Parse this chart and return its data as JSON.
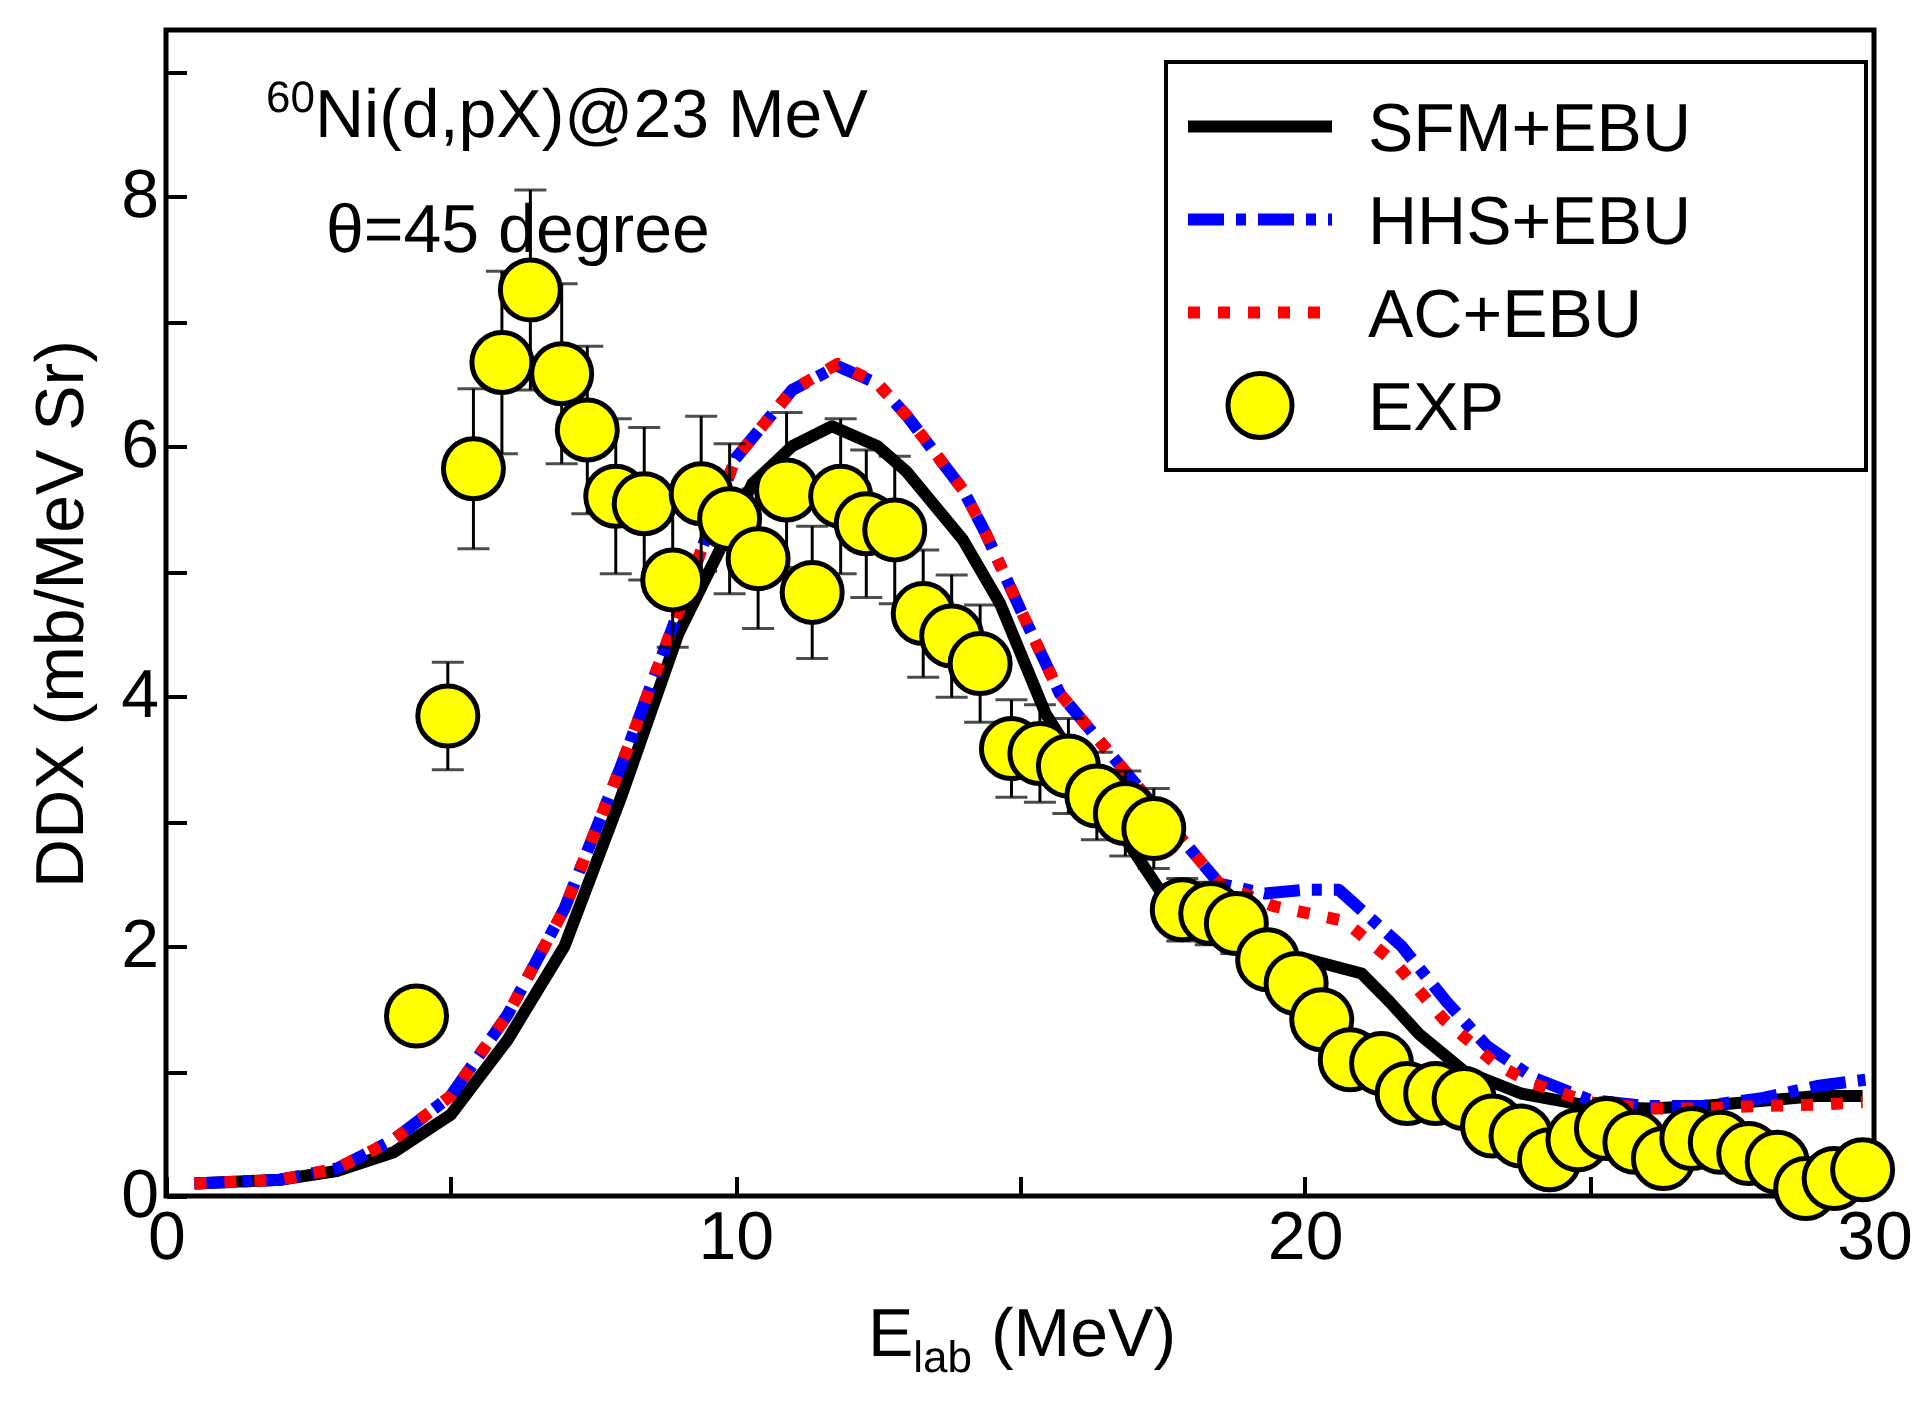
{
  "chart_data": {
    "type": "line",
    "xlabel": "E$_{lab}$ (MeV)",
    "ylabel": "DDX (mb/MeV Sr)",
    "annotations": [
      "$^{60}$Ni(d,pX)@23 MeV",
      "θ=45 degree"
    ],
    "xlim": [
      0,
      30
    ],
    "xticks": [
      0,
      {
        "value": 5,
        "label": null
      },
      10,
      {
        "value": 15,
        "label": null
      },
      20,
      {
        "value": 25,
        "label": null
      },
      30
    ],
    "ylim": [
      0,
      9.33
    ],
    "yticks": [
      0,
      {
        "value": 1,
        "label": null
      },
      2,
      {
        "value": 3,
        "label": null
      },
      4,
      {
        "value": 5,
        "label": null
      },
      6,
      {
        "value": 7,
        "label": null
      },
      8,
      {
        "value": 9,
        "label": null
      }
    ],
    "legend": "top right",
    "grid": false,
    "series": [
      {
        "name": "SFM+EBU",
        "line_style": "solid",
        "color": "#000000",
        "x": [
          0.5,
          2,
          3,
          4,
          5,
          6,
          7,
          8,
          9,
          10.3,
          11,
          11.7,
          12.5,
          13,
          14,
          14.65,
          15.45,
          16.5,
          17.45,
          18,
          19,
          19.5,
          20,
          21,
          21.5,
          22,
          22.8,
          23.8,
          25,
          26,
          27,
          28,
          29,
          29.8
        ],
        "values": [
          0.1,
          0.13,
          0.2,
          0.35,
          0.65,
          1.25,
          2.0,
          3.2,
          4.5,
          5.7,
          6.0,
          6.16,
          6.0,
          5.8,
          5.25,
          4.74,
          3.86,
          3.1,
          2.45,
          2.25,
          2.0,
          1.9,
          1.9,
          1.78,
          1.55,
          1.3,
          1.0,
          0.82,
          0.72,
          0.7,
          0.72,
          0.76,
          0.8,
          0.8
        ]
      },
      {
        "name": "HHS+EBU",
        "line_style": "dashed",
        "color": "#0000ff",
        "x": [
          0.5,
          2,
          3,
          4,
          5,
          6,
          7,
          8,
          10,
          11,
          11.8,
          12.5,
          13,
          14,
          14.4,
          15,
          15.7,
          18.5,
          19.3,
          20,
          20.6,
          21.7,
          22.5,
          23.2,
          24,
          25,
          26,
          27,
          28,
          29,
          29.85
        ],
        "values": [
          0.1,
          0.13,
          0.22,
          0.45,
          0.8,
          1.45,
          2.3,
          3.45,
          5.9,
          6.45,
          6.64,
          6.5,
          6.25,
          5.65,
          5.3,
          4.7,
          4.02,
          2.5,
          2.42,
          2.45,
          2.45,
          2.0,
          1.55,
          1.2,
          0.95,
          0.77,
          0.72,
          0.72,
          0.78,
          0.88,
          0.93
        ]
      },
      {
        "name": "AC+EBU",
        "line_style": "dotted",
        "color": "#ff0000",
        "x": [
          0.5,
          2,
          3,
          4,
          5,
          6,
          7,
          8,
          10,
          11,
          11.8,
          12.5,
          13,
          14,
          14.4,
          15,
          15.7,
          18.5,
          19.45,
          20.7,
          21.6,
          22.45,
          23.35,
          24,
          25,
          26,
          27,
          28,
          29,
          29.4,
          29.8
        ],
        "values": [
          0.1,
          0.13,
          0.22,
          0.45,
          0.8,
          1.45,
          2.3,
          3.45,
          5.9,
          6.45,
          6.66,
          6.5,
          6.25,
          5.65,
          5.3,
          4.7,
          4.02,
          2.5,
          2.32,
          2.2,
          1.86,
          1.41,
          1.06,
          0.9,
          0.75,
          0.7,
          0.7,
          0.72,
          0.73,
          0.74,
          0.75
        ]
      },
      {
        "name": "EXP",
        "type": "scatter",
        "marker": "circle",
        "color": "#ffff00",
        "x": [
          4.4,
          4.95,
          5.4,
          5.9,
          6.4,
          6.95,
          7.4,
          7.9,
          8.4,
          8.9,
          9.4,
          9.9,
          10.4,
          10.9,
          11.35,
          11.85,
          12.3,
          12.8,
          13.3,
          13.8,
          14.3,
          14.85,
          15.35,
          15.85,
          16.35,
          16.85,
          17.35,
          17.85,
          18.35,
          18.8,
          19.35,
          19.85,
          20.3,
          20.8,
          21.35,
          21.8,
          22.3,
          22.8,
          23.3,
          23.8,
          24.3,
          24.8,
          25.3,
          25.8,
          26.3,
          26.8,
          27.3,
          27.8,
          28.3,
          28.8,
          29.3,
          29.8
        ],
        "values": [
          1.44,
          3.84,
          5.82,
          6.67,
          7.25,
          6.58,
          6.13,
          5.6,
          5.54,
          4.93,
          5.62,
          5.42,
          5.1,
          5.65,
          4.83,
          5.6,
          5.38,
          5.33,
          4.66,
          4.48,
          4.26,
          3.58,
          3.54,
          3.44,
          3.2,
          3.06,
          2.94,
          2.29,
          2.26,
          2.18,
          1.89,
          1.7,
          1.41,
          1.09,
          1.06,
          0.82,
          0.82,
          0.78,
          0.56,
          0.48,
          0.29,
          0.45,
          0.54,
          0.43,
          0.3,
          0.46,
          0.43,
          0.34,
          0.27,
          0.06,
          0.14,
          0.21
        ],
        "errors": [
          null,
          0.43,
          0.64,
          0.73,
          0.8,
          0.72,
          0.67,
          0.62,
          0.61,
          0.54,
          0.62,
          0.6,
          0.56,
          0.62,
          0.53,
          0.62,
          0.59,
          0.59,
          0.51,
          0.49,
          0.47,
          0.39,
          0.39,
          0.38,
          0.35,
          0.34,
          0.32,
          0.25,
          0.25,
          0.24,
          0.21,
          0.19,
          0.16,
          0.12,
          0.12,
          0.09,
          0.09,
          0.09,
          0.06,
          0.05,
          0.03,
          0.05,
          0.06,
          0.05,
          0.03,
          0.05,
          0.05,
          0.04,
          0.03,
          0.01,
          0.02,
          0.02
        ]
      }
    ]
  }
}
